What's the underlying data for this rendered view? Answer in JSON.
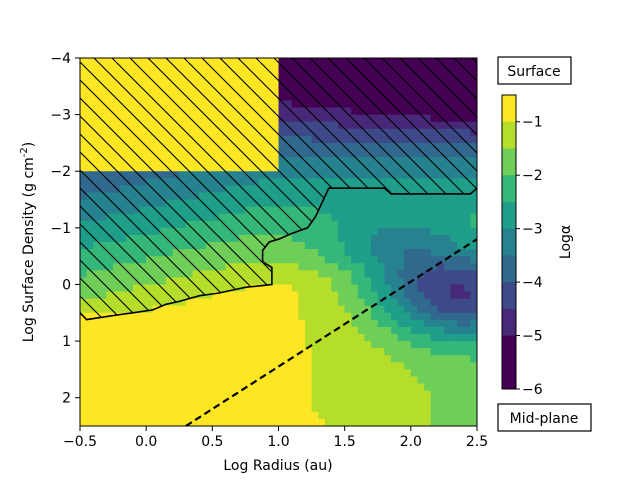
{
  "chart_data": {
    "type": "heatmap",
    "subtype": "filled-contour",
    "xlabel": "Log Radius (au)",
    "ylabel": "Log Surface Density (g cm$^{-2}$)",
    "xlim": [
      -0.5,
      2.5
    ],
    "ylim": [
      2.5,
      -4
    ],
    "x_ticks": [
      -0.5,
      0.0,
      0.5,
      1.0,
      1.5,
      2.0,
      2.5
    ],
    "x_tick_labels": [
      "−0.5",
      "0.0",
      "0.5",
      "1.0",
      "1.5",
      "2.0",
      "2.5"
    ],
    "y_ticks": [
      -4,
      -3,
      -2,
      -1,
      0,
      1,
      2
    ],
    "y_tick_labels": [
      "−4",
      "−3",
      "−2",
      "−1",
      "0",
      "1",
      "2"
    ],
    "colorbar": {
      "label": "Logα",
      "ticks": [
        -1,
        -2,
        -3,
        -4,
        -5,
        -6
      ],
      "tick_labels": [
        "−1",
        "−2",
        "−3",
        "−4",
        "−5",
        "−6"
      ],
      "levels": [
        {
          "range": [
            -1,
            -0.5
          ],
          "color": "#fde725"
        },
        {
          "range": [
            -1.5,
            -1
          ],
          "color": "#b5de2b"
        },
        {
          "range": [
            -2,
            -1.5
          ],
          "color": "#6ece58"
        },
        {
          "range": [
            -2.5,
            -2
          ],
          "color": "#35b779"
        },
        {
          "range": [
            -3,
            -2.5
          ],
          "color": "#1f9e89"
        },
        {
          "range": [
            -3.5,
            -3
          ],
          "color": "#26828e"
        },
        {
          "range": [
            -4,
            -3.5
          ],
          "color": "#31688e"
        },
        {
          "range": [
            -4.5,
            -4
          ],
          "color": "#3e4989"
        },
        {
          "range": [
            -5,
            -4.5
          ],
          "color": "#482878"
        },
        {
          "range": [
            -6,
            -5
          ],
          "color": "#440154"
        }
      ]
    },
    "annotations": {
      "top_box": "Surface",
      "bottom_box": "Mid-plane"
    },
    "dashed_line": {
      "x": [
        0.3,
        2.5
      ],
      "y": [
        2.5,
        -0.8
      ]
    },
    "hatched_boundary": {
      "x": [
        -0.5,
        -0.45,
        -0.25,
        -0.1,
        0.05,
        0.15,
        0.25,
        0.4,
        0.55,
        0.75,
        0.95,
        0.95,
        0.88,
        0.88,
        0.93,
        1.0,
        1.1,
        1.22,
        1.28,
        1.38,
        1.8,
        1.85,
        2.45,
        2.5
      ],
      "y": [
        0.5,
        0.62,
        0.55,
        0.5,
        0.45,
        0.35,
        0.3,
        0.2,
        0.15,
        0.05,
        0.0,
        -0.3,
        -0.4,
        -0.6,
        -0.75,
        -0.8,
        -0.9,
        -1.0,
        -1.2,
        -1.7,
        -1.7,
        -1.6,
        -1.6,
        -1.7
      ]
    }
  }
}
